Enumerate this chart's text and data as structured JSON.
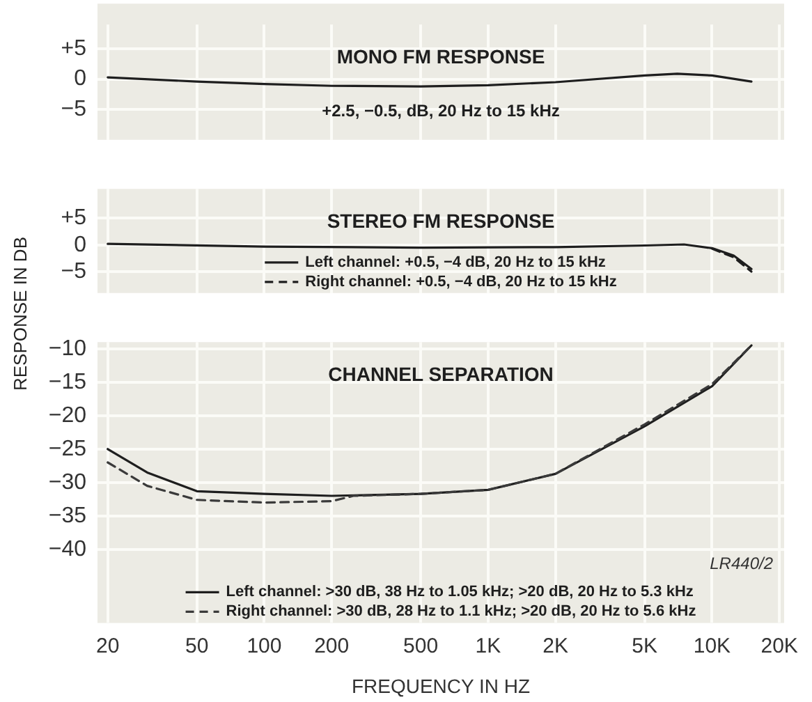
{
  "chart_data": [
    {
      "type": "line",
      "title": "MONO FM RESPONSE",
      "subtitle": "+2.5, −0.5, dB, 20 Hz to 15 kHz",
      "xlim": [
        18,
        21000
      ],
      "xticks": [
        20,
        50,
        100,
        200,
        500,
        1000,
        2000,
        5000,
        10000,
        20000
      ],
      "ylim": [
        -10,
        9
      ],
      "yticks": [
        {
          "value": 5,
          "label": "+5"
        },
        0,
        {
          "value": -5,
          "label": "−5"
        }
      ],
      "log": "x",
      "grid": true,
      "tick_labels": "y",
      "marker": "none",
      "series": [
        {
          "color": "#1e1e1e",
          "line_style": "solid",
          "x": [
            20,
            50,
            100,
            200,
            500,
            1000,
            2000,
            5000,
            7000,
            10000,
            15000
          ],
          "values": [
            0.3,
            -0.4,
            -0.8,
            -1.1,
            -1.2,
            -1,
            -0.5,
            0.6,
            0.9,
            0.6,
            -0.4
          ]
        }
      ]
    },
    {
      "type": "line",
      "title": "STEREO FM RESPONSE",
      "ylabel": "RESPONSE IN DB",
      "xlim": [
        18,
        21000
      ],
      "xticks": [
        20,
        50,
        100,
        200,
        500,
        1000,
        2000,
        5000,
        10000,
        20000
      ],
      "ylim": [
        -9,
        10.5
      ],
      "yticks": [
        {
          "value": 5,
          "label": "+5"
        },
        0,
        {
          "value": -5,
          "label": "−5"
        }
      ],
      "log": "x",
      "grid": true,
      "tick_labels": "y",
      "marker": "none",
      "legend": "bottom",
      "series": [
        {
          "name": "Left channel: +0.5, −4 dB, 20 Hz to 15 kHz",
          "color": "#1e1e1e",
          "line_style": "solid",
          "x": [
            20,
            100,
            500,
            2000,
            5000,
            7500,
            10000,
            12500,
            15000
          ],
          "values": [
            0.2,
            -0.3,
            -0.5,
            -0.4,
            -0.1,
            0.1,
            -0.6,
            -2,
            -4.5
          ]
        },
        {
          "name": "Right channel: +0.5, −4 dB, 20 Hz to 15 kHz",
          "color": "#1e1e1e",
          "line_style": "dashed",
          "x": [
            10000,
            12500,
            15000
          ],
          "values": [
            -0.7,
            -2.3,
            -5
          ]
        }
      ]
    },
    {
      "type": "line",
      "title": "CHANNEL SEPARATION",
      "xlabel": "FREQUENCY IN HZ",
      "annotations": [
        "LR440/2"
      ],
      "xlim": [
        18,
        21000
      ],
      "xticks": [
        20,
        50,
        100,
        200,
        500,
        {
          "value": 1000,
          "label": "1K"
        },
        {
          "value": 2000,
          "label": "2K"
        },
        {
          "value": 5000,
          "label": "5K"
        },
        {
          "value": 10000,
          "label": "10K"
        },
        {
          "value": 20000,
          "label": "20K"
        }
      ],
      "ylim": [
        -51,
        -9
      ],
      "yticks": [
        {
          "value": -10,
          "label": "−10"
        },
        {
          "value": -15,
          "label": "−15"
        },
        {
          "value": -20,
          "label": "−20"
        },
        {
          "value": -25,
          "label": "−25"
        },
        {
          "value": -30,
          "label": "−30"
        },
        {
          "value": -35,
          "label": "−35"
        },
        {
          "value": -40,
          "label": "−40"
        }
      ],
      "log": "x",
      "grid": true,
      "marker": "none",
      "legend": "bottom",
      "series": [
        {
          "name": "Left channel: >30 dB, 38 Hz to 1.05 kHz; >20 dB, 20 Hz to 5.3 kHz",
          "color": "#1e1e1e",
          "line_style": "solid",
          "x": [
            20,
            30,
            50,
            100,
            200,
            500,
            1000,
            2000,
            5000,
            10000,
            15000
          ],
          "values": [
            -25,
            -28.5,
            -31.3,
            -31.7,
            -32,
            -31.7,
            -31.1,
            -28.7,
            -21.6,
            -15.6,
            -9.5
          ]
        },
        {
          "name": "Right channel: >30 dB, 28 Hz to 1.1 kHz; >20 dB, 20 Hz to 5.6 kHz",
          "color": "#3a3a3a",
          "line_style": "dashed",
          "x": [
            20,
            30,
            50,
            100,
            200,
            250,
            500,
            1000,
            2000,
            5000,
            10000,
            15000
          ],
          "values": [
            -27,
            -30.5,
            -32.6,
            -33,
            -32.8,
            -32,
            -31.7,
            -31.1,
            -28.7,
            -21.3,
            -15.3,
            -9.5
          ]
        }
      ]
    }
  ]
}
